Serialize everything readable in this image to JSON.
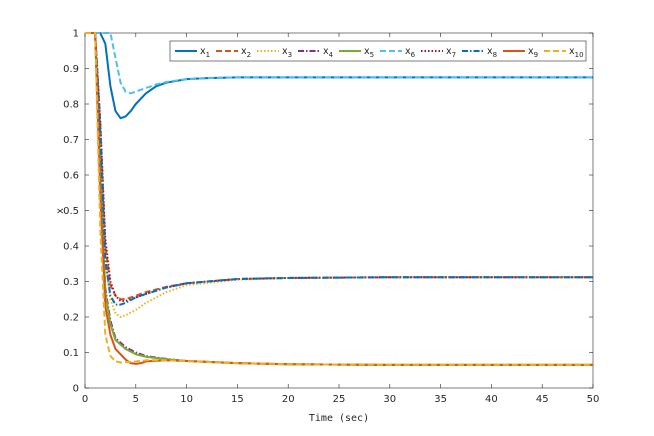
{
  "chart_data": {
    "type": "line",
    "title": "",
    "xlabel": "Time (sec)",
    "ylabel": "x",
    "xlim": [
      0,
      50
    ],
    "ylim": [
      0,
      1
    ],
    "grid": false,
    "legend_position": "top-right",
    "xticks": [
      "0",
      "5",
      "10",
      "15",
      "20",
      "25",
      "30",
      "35",
      "40",
      "45",
      "50"
    ],
    "yticks": [
      "0",
      "0.1",
      "0.2",
      "0.3",
      "0.4",
      "0.5",
      "0.6",
      "0.7",
      "0.8",
      "0.9",
      "1"
    ],
    "series": [
      {
        "name": "x1",
        "color": "#0072BD",
        "dash": "solid",
        "x": [
          0,
          1.5,
          2,
          2.5,
          3,
          3.5,
          4,
          4.5,
          5,
          6,
          7,
          8,
          10,
          12,
          15,
          20,
          30,
          40,
          50
        ],
        "y": [
          1,
          1,
          0.97,
          0.85,
          0.78,
          0.76,
          0.765,
          0.78,
          0.8,
          0.83,
          0.85,
          0.86,
          0.87,
          0.873,
          0.875,
          0.875,
          0.875,
          0.875,
          0.875
        ]
      },
      {
        "name": "x2",
        "color": "#D95319",
        "dash": "dashed",
        "x": [
          0,
          1,
          1.5,
          2,
          2.5,
          3,
          3.5,
          4,
          5,
          6,
          8,
          10,
          15,
          20,
          30,
          40,
          50
        ],
        "y": [
          1,
          1,
          0.75,
          0.4,
          0.29,
          0.26,
          0.25,
          0.25,
          0.26,
          0.27,
          0.285,
          0.295,
          0.307,
          0.31,
          0.312,
          0.312,
          0.312
        ]
      },
      {
        "name": "x3",
        "color": "#EDB120",
        "dash": "dotted",
        "x": [
          0,
          1,
          1.5,
          2,
          2.5,
          3,
          3.5,
          4,
          5,
          6,
          8,
          10,
          15,
          20,
          30,
          40,
          50
        ],
        "y": [
          1,
          1,
          0.7,
          0.36,
          0.25,
          0.21,
          0.2,
          0.205,
          0.22,
          0.24,
          0.27,
          0.29,
          0.305,
          0.31,
          0.312,
          0.312,
          0.312
        ]
      },
      {
        "name": "x4",
        "color": "#7E2F8E",
        "dash": "dashdot",
        "x": [
          0,
          1,
          1.5,
          2,
          2.5,
          3,
          4,
          5,
          6,
          8,
          10,
          15,
          20,
          30,
          40,
          50
        ],
        "y": [
          1,
          1,
          0.6,
          0.28,
          0.19,
          0.14,
          0.115,
          0.1,
          0.09,
          0.082,
          0.076,
          0.07,
          0.067,
          0.065,
          0.065,
          0.065
        ]
      },
      {
        "name": "x5",
        "color": "#77AC30",
        "dash": "solid",
        "x": [
          0,
          1,
          1.5,
          2,
          2.5,
          3,
          4,
          5,
          6,
          8,
          10,
          15,
          20,
          30,
          40,
          50
        ],
        "y": [
          1,
          1,
          0.6,
          0.27,
          0.18,
          0.135,
          0.11,
          0.095,
          0.088,
          0.081,
          0.076,
          0.07,
          0.067,
          0.065,
          0.065,
          0.065
        ]
      },
      {
        "name": "x6",
        "color": "#4DBEEE",
        "dash": "dashed",
        "x": [
          0,
          2.5,
          3,
          3.5,
          4,
          4.5,
          5,
          6,
          7,
          8,
          10,
          12,
          15,
          20,
          30,
          40,
          50
        ],
        "y": [
          1,
          1,
          0.93,
          0.86,
          0.835,
          0.83,
          0.835,
          0.845,
          0.855,
          0.862,
          0.87,
          0.873,
          0.875,
          0.875,
          0.875,
          0.875,
          0.875
        ]
      },
      {
        "name": "x7",
        "color": "#A2142F",
        "dash": "dotted",
        "x": [
          0,
          1,
          1.5,
          2,
          2.5,
          3,
          3.5,
          4,
          5,
          6,
          8,
          10,
          15,
          20,
          30,
          40,
          50
        ],
        "y": [
          1,
          1,
          0.75,
          0.42,
          0.3,
          0.26,
          0.245,
          0.245,
          0.255,
          0.265,
          0.283,
          0.295,
          0.307,
          0.31,
          0.312,
          0.312,
          0.312
        ]
      },
      {
        "name": "x8",
        "color": "#0072BD",
        "dash": "dashdot",
        "x": [
          0,
          1,
          1.5,
          2,
          2.5,
          3,
          3.5,
          4,
          5,
          6,
          8,
          10,
          15,
          20,
          30,
          40,
          50
        ],
        "y": [
          1,
          1,
          0.72,
          0.36,
          0.26,
          0.235,
          0.235,
          0.24,
          0.255,
          0.265,
          0.283,
          0.295,
          0.307,
          0.31,
          0.312,
          0.312,
          0.312
        ]
      },
      {
        "name": "x9",
        "color": "#D95319",
        "dash": "solid",
        "x": [
          0,
          1,
          1.5,
          2,
          2.5,
          3,
          4,
          4.5,
          5,
          5.5,
          6,
          8,
          10,
          15,
          20,
          30,
          40,
          50
        ],
        "y": [
          1,
          1,
          0.55,
          0.23,
          0.15,
          0.11,
          0.08,
          0.07,
          0.068,
          0.07,
          0.075,
          0.078,
          0.076,
          0.07,
          0.067,
          0.065,
          0.065,
          0.065
        ]
      },
      {
        "name": "x10",
        "color": "#EDB120",
        "dash": "dashed",
        "x": [
          0,
          1,
          1.5,
          2,
          2.5,
          3,
          3.5,
          4,
          5,
          6,
          8,
          10,
          15,
          20,
          30,
          40,
          50
        ],
        "y": [
          1,
          1,
          0.45,
          0.15,
          0.09,
          0.075,
          0.072,
          0.073,
          0.075,
          0.078,
          0.078,
          0.076,
          0.07,
          0.067,
          0.065,
          0.065,
          0.065
        ]
      }
    ]
  }
}
